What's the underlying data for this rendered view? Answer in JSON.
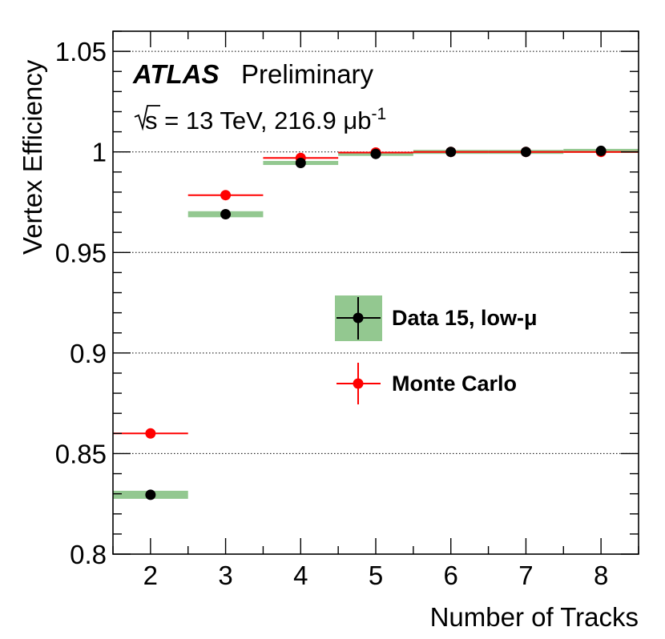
{
  "chart_data": {
    "type": "scatter",
    "title": "",
    "xlabel": "Number of Tracks",
    "ylabel": "Vertex Efficiency",
    "xlim": [
      1.5,
      8.5
    ],
    "ylim": [
      0.8,
      1.06
    ],
    "xticks": [
      "2",
      "3",
      "4",
      "5",
      "6",
      "7",
      "8"
    ],
    "yticks": [
      "0.8",
      "0.85",
      "0.9",
      "0.95",
      "1",
      "1.05"
    ],
    "grid": "horizontal-dotted",
    "series": [
      {
        "name": "Data 15, low-μ",
        "marker": "black-circle-with-green-band",
        "color": "#000000",
        "band_color": "#93c890",
        "x": [
          2,
          3,
          4,
          5,
          6,
          7,
          8
        ],
        "values": [
          0.8295,
          0.969,
          0.9945,
          0.999,
          1.0,
          1.0,
          1.0005
        ],
        "band_low": [
          0.8275,
          0.9675,
          0.9935,
          0.9985,
          0.9995,
          0.9998,
          0.9998
        ],
        "band_high": [
          0.8315,
          0.9705,
          0.9955,
          0.9995,
          1.0005,
          1.0002,
          1.0012
        ]
      },
      {
        "name": "Monte Carlo",
        "marker": "red-circle-with-x-error",
        "color": "#ff0000",
        "x": [
          2,
          3,
          4,
          5,
          6,
          7,
          8
        ],
        "values": [
          0.86,
          0.9785,
          0.997,
          0.9997,
          1.0,
          1.0,
          1.0
        ]
      }
    ],
    "annotations": {
      "experiment": "ATLAS",
      "status": "Preliminary",
      "energy_prefix": "s = 13 TeV, 216.9 μb",
      "energy_exponent": "-1"
    },
    "legend_position": "center-right"
  }
}
